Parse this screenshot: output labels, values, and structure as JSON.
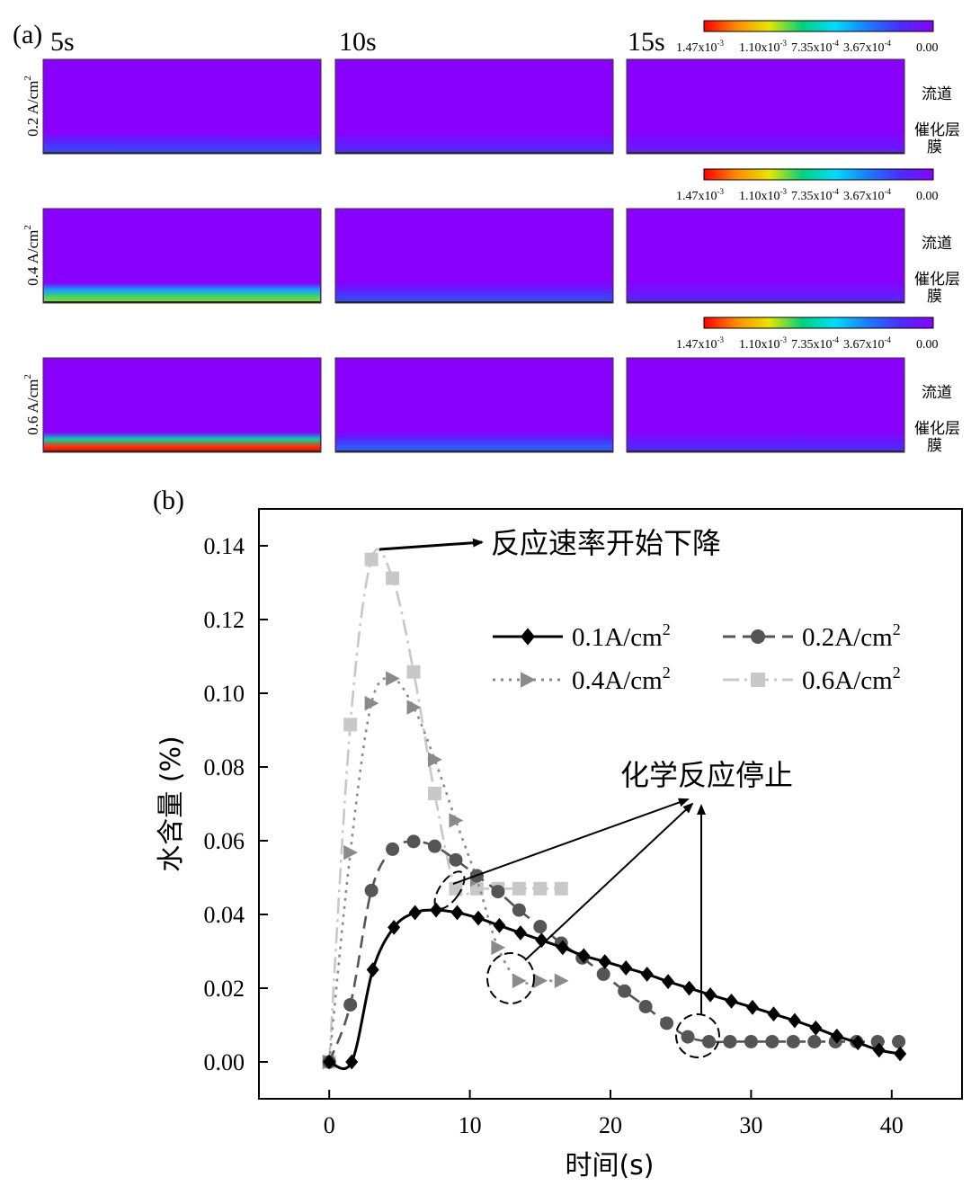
{
  "panel_a": {
    "label": "(a)",
    "times": [
      "5s",
      "10s",
      "15s"
    ],
    "currents": [
      "0.2 A/cm",
      "0.4 A/cm",
      "0.6 A/cm"
    ],
    "current_exp": "2",
    "colorbar_ticks": [
      "1.47x10",
      "1.10x10",
      "7.35x10",
      "3.67x10",
      "0.00"
    ],
    "colorbar_tick_exps": [
      "-3",
      "-3",
      "-4",
      "-4",
      ""
    ],
    "colorbar_colors": [
      "#ff0000",
      "#ff8c00",
      "#e6e600",
      "#00d27a",
      "#00dcff",
      "#1a7cff",
      "#4b2cff",
      "#8a00ff"
    ],
    "region_labels": [
      "流道",
      "催化层",
      "膜"
    ],
    "bottom_band_levels": [
      [
        0.18,
        0.12,
        0.08
      ],
      [
        0.62,
        0.18,
        0.1
      ],
      [
        0.95,
        0.22,
        0.12
      ]
    ]
  },
  "chart_data": {
    "label": "(b)",
    "type": "line",
    "xlabel": "时间(s)",
    "ylabel": "水含量 (%)",
    "xlim": [
      -5,
      45
    ],
    "ylim": [
      -0.01,
      0.15
    ],
    "xticks": [
      0,
      10,
      20,
      30,
      40
    ],
    "yticks": [
      0.0,
      0.02,
      0.04,
      0.06,
      0.08,
      0.1,
      0.12,
      0.14
    ],
    "legend_position": "upper-right",
    "series": [
      {
        "name": "0.1A/cm",
        "name_sup": "2",
        "color": "#000000",
        "marker": "diamond",
        "dash": "",
        "x": [
          0,
          1.6,
          3.1,
          4.6,
          6.1,
          7.6,
          9.1,
          10.6,
          12.1,
          13.6,
          15.1,
          16.6,
          18.1,
          19.6,
          21.1,
          22.6,
          24.1,
          25.6,
          27.1,
          28.6,
          30.1,
          31.6,
          33.1,
          34.6,
          36.1,
          37.6,
          39.1,
          40.6
        ],
        "y": [
          0.0,
          0.0,
          0.025,
          0.0365,
          0.0405,
          0.0412,
          0.0405,
          0.039,
          0.037,
          0.035,
          0.033,
          0.031,
          0.0288,
          0.0272,
          0.0255,
          0.0238,
          0.0218,
          0.02,
          0.0182,
          0.0165,
          0.0148,
          0.013,
          0.0112,
          0.0092,
          0.007,
          0.0052,
          0.0032,
          0.0022
        ]
      },
      {
        "name": "0.2A/cm",
        "name_sup": "2",
        "color": "#555555",
        "marker": "circle",
        "dash": "14,8",
        "x": [
          0,
          1.5,
          3.0,
          4.5,
          6.0,
          7.5,
          9.0,
          10.5,
          12.0,
          13.5,
          15.0,
          16.5,
          18.0,
          19.5,
          21.0,
          22.5,
          24.0,
          25.5,
          27.0,
          28.5,
          30.0,
          31.5,
          33.0,
          34.5,
          36.0,
          37.5,
          39.0,
          40.5
        ],
        "y": [
          0.0,
          0.0155,
          0.0465,
          0.0577,
          0.0598,
          0.0585,
          0.0548,
          0.0505,
          0.0462,
          0.0412,
          0.0367,
          0.0322,
          0.0282,
          0.0238,
          0.0192,
          0.015,
          0.0105,
          0.0068,
          0.0055,
          0.0055,
          0.0055,
          0.0055,
          0.0055,
          0.0055,
          0.0055,
          0.0055,
          0.0055,
          0.0055
        ]
      },
      {
        "name": "0.4A/cm",
        "name_sup": "2",
        "color": "#8a8a8a",
        "marker": "triangle-right",
        "dash": "3,6",
        "x": [
          0,
          1.5,
          3.0,
          4.5,
          6.0,
          7.5,
          9.0,
          10.5,
          12.0,
          13.5,
          15.0,
          16.5
        ],
        "y": [
          0.0,
          0.0568,
          0.0973,
          0.104,
          0.0962,
          0.082,
          0.0655,
          0.0495,
          0.031,
          0.022,
          0.022,
          0.022
        ]
      },
      {
        "name": "0.6A/cm",
        "name_sup": "2",
        "color": "#c8c8c8",
        "marker": "square",
        "dash": "18,6,3,6",
        "x": [
          0,
          1.5,
          3.0,
          4.5,
          6.0,
          7.5,
          9.0,
          10.5,
          12.0,
          13.5,
          15.0,
          16.5
        ],
        "y": [
          0.0,
          0.0915,
          0.1363,
          0.1312,
          0.1058,
          0.0728,
          0.047,
          0.047,
          0.047,
          0.047,
          0.047,
          0.047
        ]
      }
    ],
    "annotations": [
      "反应速率开始下降",
      "化学反应停止"
    ]
  }
}
